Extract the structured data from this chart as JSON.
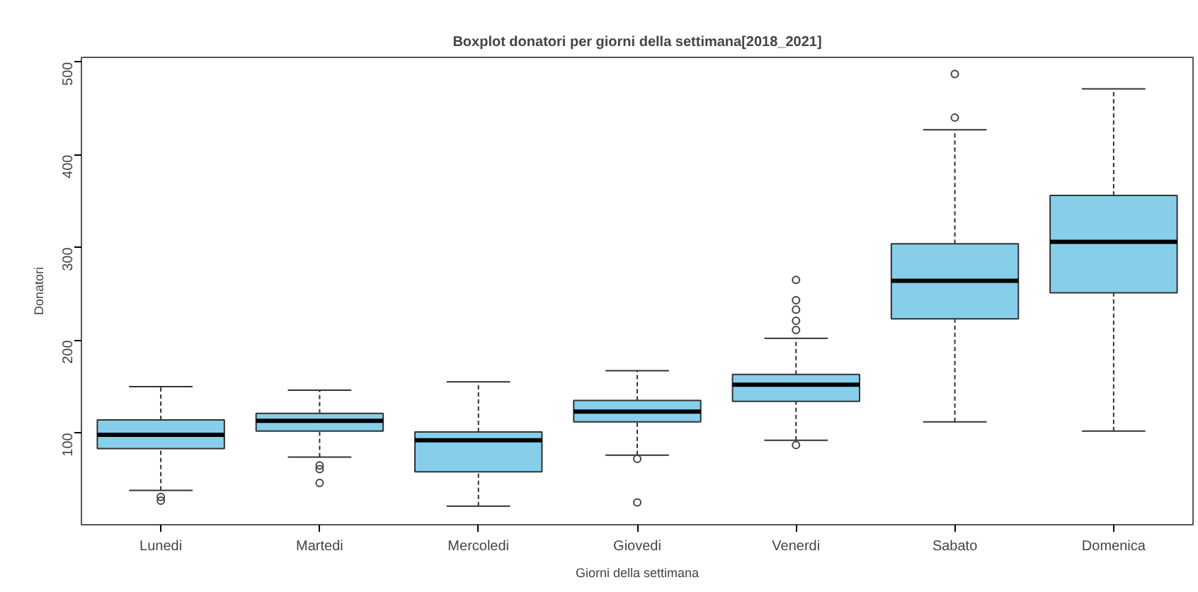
{
  "chart_data": {
    "type": "box",
    "title": "Boxplot donatori per giorni della settimana[2018_2021]",
    "xlabel": "Giorni della settimana",
    "ylabel": "Donatori",
    "categories": [
      "Lunedi",
      "Martedi",
      "Mercoledi",
      "Giovedi",
      "Venerdi",
      "Sabato",
      "Domenica"
    ],
    "color": "#87ceeb",
    "boxes": [
      {
        "low": 38,
        "q1": 83,
        "median": 98,
        "q3": 114,
        "high": 150,
        "outliers": [
          31,
          27
        ]
      },
      {
        "low": 74,
        "q1": 102,
        "median": 113,
        "q3": 121,
        "high": 146,
        "outliers": [
          65,
          61,
          46
        ]
      },
      {
        "low": 21,
        "q1": 58,
        "median": 92,
        "q3": 101,
        "high": 155
      },
      {
        "low": 76,
        "q1": 112,
        "median": 123,
        "q3": 135,
        "high": 167,
        "outliers": [
          72,
          25
        ]
      },
      {
        "low": 92,
        "q1": 134,
        "median": 152,
        "q3": 163,
        "high": 202,
        "outliers": [
          87,
          211,
          221,
          233,
          243,
          265
        ]
      },
      {
        "low": 112,
        "q1": 223,
        "median": 264,
        "q3": 304,
        "high": 427,
        "outliers": [
          440,
          487
        ]
      },
      {
        "low": 102,
        "q1": 251,
        "median": 306,
        "q3": 356,
        "high": 471
      }
    ],
    "ylim": [
      1,
      505
    ],
    "yticks": [
      100,
      200,
      300,
      400,
      500
    ]
  }
}
